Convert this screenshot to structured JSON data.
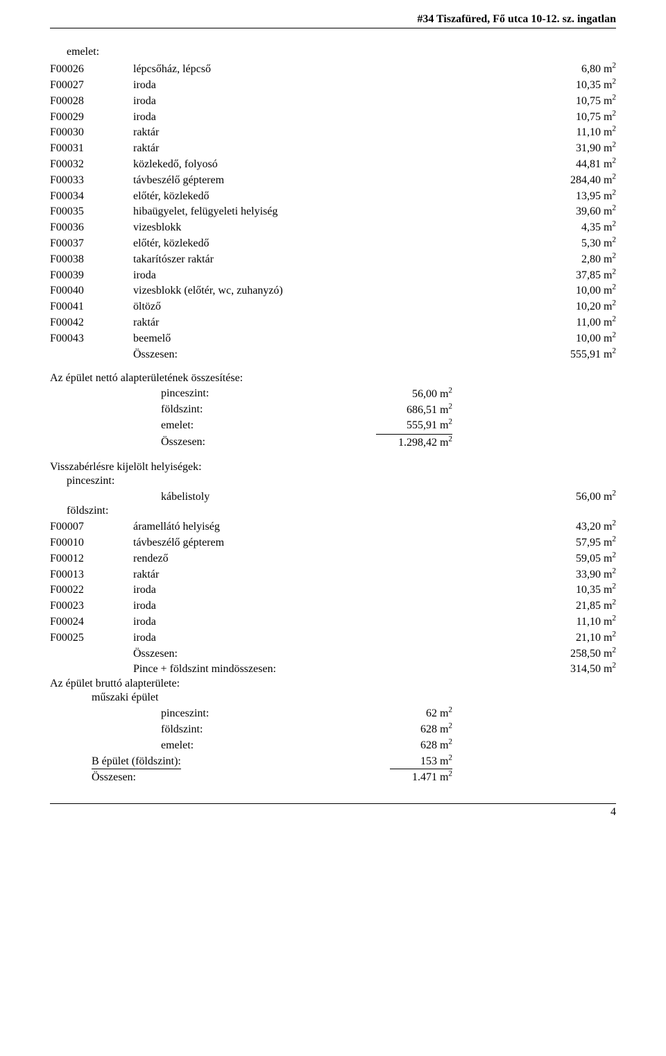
{
  "header": "#34   Tiszafüred, Fő utca 10-12. sz. ingatlan",
  "page_number": "4",
  "emelet": {
    "label": "emelet:",
    "rows": [
      {
        "c": "F00026",
        "d": "lépcsőház, lépcső",
        "v": "6,80"
      },
      {
        "c": "F00027",
        "d": "iroda",
        "v": "10,35"
      },
      {
        "c": "F00028",
        "d": "iroda",
        "v": "10,75"
      },
      {
        "c": "F00029",
        "d": "iroda",
        "v": "10,75"
      },
      {
        "c": "F00030",
        "d": "raktár",
        "v": "11,10"
      },
      {
        "c": "F00031",
        "d": "raktár",
        "v": "31,90"
      },
      {
        "c": "F00032",
        "d": "közlekedő, folyosó",
        "v": "44,81"
      },
      {
        "c": "F00033",
        "d": "távbeszélő gépterem",
        "v": "284,40"
      },
      {
        "c": "F00034",
        "d": "előtér, közlekedő",
        "v": "13,95"
      },
      {
        "c": "F00035",
        "d": "hibaügyelet, felügyeleti helyiség",
        "v": "39,60"
      },
      {
        "c": "F00036",
        "d": "vizesblokk",
        "v": "4,35"
      },
      {
        "c": "F00037",
        "d": "előtér, közlekedő",
        "v": "5,30"
      },
      {
        "c": "F00038",
        "d": "takarítószer raktár",
        "v": "2,80"
      },
      {
        "c": "F00039",
        "d": "iroda",
        "v": "37,85"
      },
      {
        "c": "F00040",
        "d": "vizesblokk (előtér, wc, zuhanyzó)",
        "v": "10,00"
      },
      {
        "c": "F00041",
        "d": "öltöző",
        "v": "10,20"
      },
      {
        "c": "F00042",
        "d": "raktár",
        "v": "11,00"
      },
      {
        "c": "F00043",
        "d": "beemelő",
        "v": "10,00"
      }
    ],
    "total_label": "Összesen:",
    "total_value": "555,91"
  },
  "netto": {
    "title": "Az épület nettó alapterületének összesítése:",
    "rows": [
      {
        "l": "pinceszint:",
        "v": "56,00",
        "u": false
      },
      {
        "l": "földszint:",
        "v": "686,51",
        "u": false
      },
      {
        "l": "emelet:",
        "v": "555,91",
        "u": true
      },
      {
        "l": "Összesen:",
        "v": "1.298,42",
        "u": false
      }
    ]
  },
  "vissza": {
    "title": "Visszabérlésre kijelölt helyiségek:",
    "pince_label": "pinceszint:",
    "pince_row": {
      "d": "kábelistoly",
      "v": "56,00"
    },
    "fold_label": "földszint:",
    "fold_rows": [
      {
        "c": "F00007",
        "d": "áramellátó helyiség",
        "v": "43,20"
      },
      {
        "c": "F00010",
        "d": "távbeszélő gépterem",
        "v": "57,95"
      },
      {
        "c": "F00012",
        "d": "rendező",
        "v": "59,05"
      },
      {
        "c": "F00013",
        "d": "raktár",
        "v": "33,90"
      },
      {
        "c": "F00022",
        "d": "iroda",
        "v": "10,35"
      },
      {
        "c": "F00023",
        "d": "iroda",
        "v": "21,85"
      },
      {
        "c": "F00024",
        "d": "iroda",
        "v": "11,10"
      },
      {
        "c": "F00025",
        "d": "iroda",
        "v": "21,10"
      }
    ],
    "total_label": "Összesen:",
    "total_value": "258,50",
    "grand_label": "Pince + földszint mindösszesen:",
    "grand_value": "314,50"
  },
  "brutto": {
    "title": "Az épület bruttó alapterülete:",
    "muszaki_label": "műszaki épület",
    "rows": [
      {
        "l": "pinceszint:",
        "v": "62",
        "u": false
      },
      {
        "l": "földszint:",
        "v": "628",
        "u": false
      },
      {
        "l": "emelet:",
        "v": "628",
        "u": false
      }
    ],
    "b_label": "B épület (földszint):",
    "b_value": "153",
    "total_label": "Összesen:",
    "total_value": "1.471"
  },
  "unit": "m",
  "sup": "2"
}
